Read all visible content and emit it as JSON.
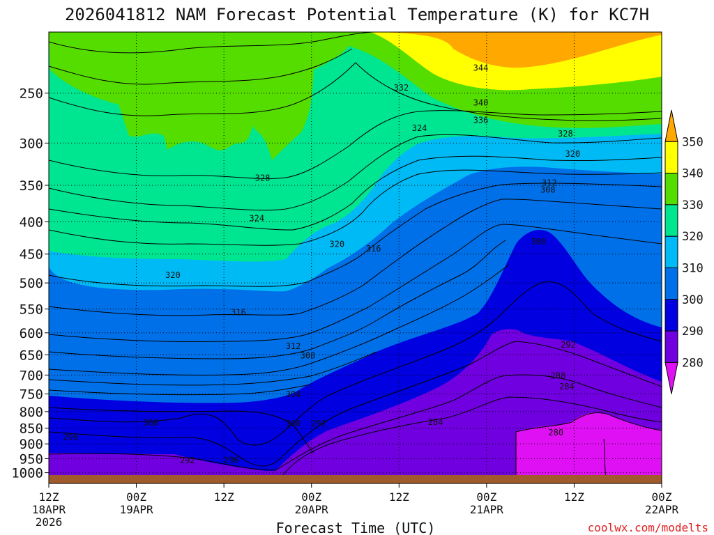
{
  "chart_data": {
    "type": "heatmap",
    "title": "2026041812 NAM Forecast Potential Temperature (K) for KC7H",
    "xlabel": "Forecast Time (UTC)",
    "ylabel": "",
    "credit": "coolwx.com/modelts",
    "x_ticks": [
      {
        "hours": 0,
        "line1": "12Z",
        "line2": "18APR",
        "line3": "2026"
      },
      {
        "hours": 12,
        "line1": "00Z",
        "line2": "19APR",
        "line3": ""
      },
      {
        "hours": 24,
        "line1": "12Z",
        "line2": "",
        "line3": ""
      },
      {
        "hours": 36,
        "line1": "00Z",
        "line2": "20APR",
        "line3": ""
      },
      {
        "hours": 48,
        "line1": "12Z",
        "line2": "",
        "line3": ""
      },
      {
        "hours": 60,
        "line1": "00Z",
        "line2": "21APR",
        "line3": ""
      },
      {
        "hours": 72,
        "line1": "12Z",
        "line2": "",
        "line3": ""
      },
      {
        "hours": 84,
        "line1": "00Z",
        "line2": "22APR",
        "line3": ""
      }
    ],
    "x_range_hours": [
      0,
      84
    ],
    "y_ticks": [
      "250",
      "300",
      "350",
      "400",
      "450",
      "500",
      "550",
      "600",
      "650",
      "700",
      "750",
      "800",
      "850",
      "900",
      "950",
      "1000"
    ],
    "y_range_hpa": [
      1040,
      200
    ],
    "colorbar": {
      "ticks": [
        "350",
        "340",
        "330",
        "320",
        "310",
        "300",
        "290",
        "280"
      ],
      "colors": [
        "#ffa800",
        "#ffff00",
        "#55dd00",
        "#00e590",
        "#00baf5",
        "#0070e8",
        "#0000e0",
        "#7000e0",
        "#e010f5"
      ]
    },
    "contour_labels": [
      {
        "text": "344",
        "h": 59.2,
        "p": 228
      },
      {
        "text": "332",
        "h": 48.3,
        "p": 245
      },
      {
        "text": "340",
        "h": 59.2,
        "p": 259
      },
      {
        "text": "336",
        "h": 59.2,
        "p": 276
      },
      {
        "text": "324",
        "h": 50.8,
        "p": 284
      },
      {
        "text": "328",
        "h": 70.8,
        "p": 290
      },
      {
        "text": "320",
        "h": 71.8,
        "p": 312
      },
      {
        "text": "328",
        "h": 29.3,
        "p": 341
      },
      {
        "text": "312",
        "h": 68.6,
        "p": 347
      },
      {
        "text": "308",
        "h": 68.4,
        "p": 356
      },
      {
        "text": "324",
        "h": 28.5,
        "p": 395
      },
      {
        "text": "300",
        "h": 67.1,
        "p": 430
      },
      {
        "text": "320",
        "h": 39.5,
        "p": 434
      },
      {
        "text": "316",
        "h": 44.5,
        "p": 441
      },
      {
        "text": "320",
        "h": 17.0,
        "p": 486
      },
      {
        "text": "316",
        "h": 26.0,
        "p": 557
      },
      {
        "text": "292",
        "h": 71.2,
        "p": 627
      },
      {
        "text": "312",
        "h": 33.5,
        "p": 630
      },
      {
        "text": "308",
        "h": 35.5,
        "p": 652
      },
      {
        "text": "288",
        "h": 69.8,
        "p": 702
      },
      {
        "text": "284",
        "h": 71.0,
        "p": 730
      },
      {
        "text": "304",
        "h": 33.5,
        "p": 751
      },
      {
        "text": "284",
        "h": 53.0,
        "p": 831
      },
      {
        "text": "300",
        "h": 14.0,
        "p": 834
      },
      {
        "text": "300",
        "h": 33.5,
        "p": 836
      },
      {
        "text": "292",
        "h": 37.0,
        "p": 836
      },
      {
        "text": "296",
        "h": 3.0,
        "p": 878
      },
      {
        "text": "280",
        "h": 69.5,
        "p": 864
      },
      {
        "text": "292",
        "h": 19.0,
        "p": 956
      },
      {
        "text": "296",
        "h": 25.0,
        "p": 955
      }
    ]
  }
}
